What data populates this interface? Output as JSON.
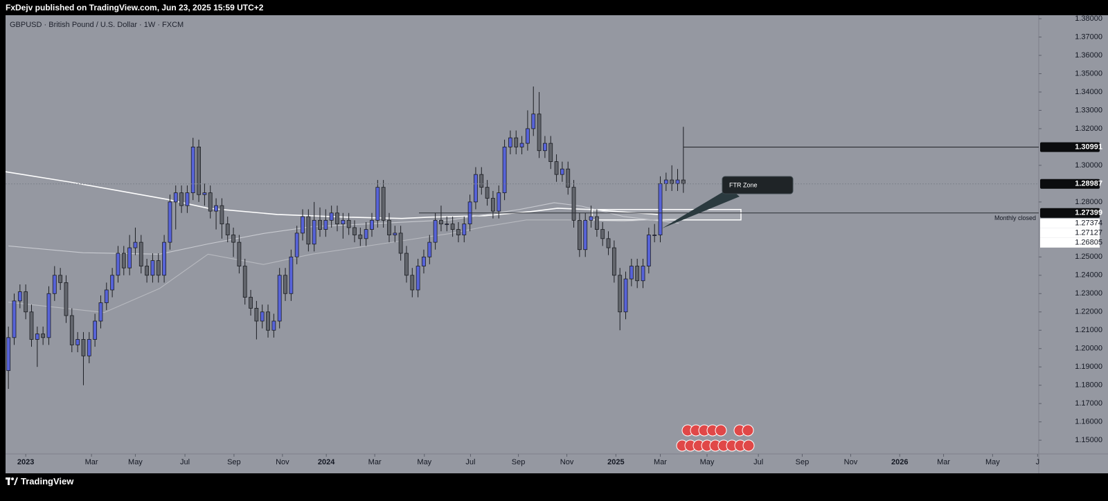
{
  "header": {
    "publisher": "FxDejv published on TradingView.com, Jun 23, 2025 15:59 UTC+2",
    "brand": "TradingView"
  },
  "chart_data": {
    "type": "candlestick",
    "title": "GBPUSD · British Pound / U.S. Dollar · 1W · FXCM",
    "up_color": "#5763d8",
    "down_color": "#62656c",
    "categories": [
      null,
      null,
      null,
      null,
      null,
      null,
      null,
      null,
      null,
      null,
      null,
      null,
      null,
      null,
      null,
      null,
      null,
      null,
      null,
      null,
      null,
      null,
      null,
      null,
      null,
      null,
      null,
      null,
      null,
      null,
      null,
      null,
      null,
      null,
      null,
      null,
      null,
      null,
      null,
      null,
      null,
      null,
      null,
      null,
      null,
      null,
      null,
      null,
      null,
      null,
      null,
      null,
      null,
      null,
      null,
      null,
      null,
      null,
      null,
      null,
      null,
      null,
      null,
      null,
      null,
      null,
      null,
      null,
      null,
      null,
      null,
      null,
      null,
      null,
      null,
      null,
      null,
      null,
      null,
      null,
      null,
      null,
      null,
      null,
      null,
      null,
      null,
      null,
      null,
      null,
      null,
      null,
      null,
      null,
      null,
      null,
      null,
      null,
      null,
      null,
      null,
      null,
      null,
      null,
      null,
      null,
      null,
      null,
      null,
      null,
      null,
      null,
      null,
      null,
      null,
      null,
      null,
      null
    ],
    "open": [
      1.188,
      1.206,
      1.226,
      1.231,
      1.22,
      1.205,
      1.208,
      1.206,
      1.23,
      1.24,
      1.236,
      1.218,
      1.202,
      1.205,
      1.196,
      1.205,
      1.215,
      1.225,
      1.232,
      1.24,
      1.252,
      1.244,
      1.255,
      1.258,
      1.245,
      1.24,
      1.248,
      1.24,
      1.258,
      1.28,
      1.285,
      1.278,
      1.285,
      1.31,
      1.284,
      1.285,
      1.275,
      1.278,
      1.268,
      1.262,
      1.258,
      1.245,
      1.228,
      1.222,
      1.215,
      1.22,
      1.21,
      1.215,
      1.24,
      1.23,
      1.25,
      1.263,
      1.272,
      1.257,
      1.27,
      1.265,
      1.27,
      1.274,
      1.268,
      1.27,
      1.266,
      1.262,
      1.26,
      1.265,
      1.27,
      1.288,
      1.27,
      1.262,
      1.263,
      1.252,
      1.24,
      1.232,
      1.245,
      1.25,
      1.258,
      1.27,
      1.268,
      1.268,
      1.265,
      1.262,
      1.268,
      1.28,
      1.295,
      1.288,
      1.282,
      1.275,
      1.285,
      1.31,
      1.315,
      1.31,
      1.312,
      1.32,
      1.328,
      1.308,
      1.312,
      1.302,
      1.295,
      1.298,
      1.288,
      1.27,
      1.254,
      1.27,
      1.272,
      1.265,
      1.26,
      1.255,
      1.24,
      1.22,
      1.238,
      1.245,
      1.237,
      1.245,
      1.262,
      1.262,
      1.29,
      1.292,
      1.29,
      1.292
    ],
    "high": [
      1.212,
      1.23,
      1.235,
      1.235,
      1.224,
      1.212,
      1.212,
      1.234,
      1.245,
      1.244,
      1.24,
      1.222,
      1.209,
      1.209,
      1.209,
      1.219,
      1.229,
      1.236,
      1.244,
      1.256,
      1.256,
      1.262,
      1.266,
      1.262,
      1.249,
      1.252,
      1.252,
      1.262,
      1.284,
      1.289,
      1.289,
      1.289,
      1.315,
      1.314,
      1.29,
      1.289,
      1.282,
      1.282,
      1.272,
      1.266,
      1.262,
      1.249,
      1.232,
      1.226,
      1.224,
      1.224,
      1.219,
      1.244,
      1.244,
      1.254,
      1.267,
      1.276,
      1.276,
      1.28,
      1.277,
      1.276,
      1.278,
      1.278,
      1.274,
      1.274,
      1.27,
      1.266,
      1.269,
      1.274,
      1.292,
      1.292,
      1.274,
      1.267,
      1.267,
      1.256,
      1.244,
      1.249,
      1.254,
      1.262,
      1.274,
      1.278,
      1.272,
      1.272,
      1.269,
      1.272,
      1.284,
      1.299,
      1.299,
      1.292,
      1.286,
      1.289,
      1.314,
      1.319,
      1.319,
      1.316,
      1.33,
      1.343,
      1.34,
      1.316,
      1.316,
      1.306,
      1.302,
      1.302,
      1.292,
      1.274,
      1.274,
      1.278,
      1.276,
      1.269,
      1.264,
      1.259,
      1.244,
      1.242,
      1.249,
      1.249,
      1.249,
      1.266,
      1.268,
      1.294,
      1.296,
      1.3,
      1.298,
      1.321
    ],
    "low": [
      1.178,
      1.202,
      1.222,
      1.216,
      1.201,
      1.19,
      1.202,
      1.202,
      1.226,
      1.232,
      1.214,
      1.198,
      1.198,
      1.18,
      1.192,
      1.201,
      1.211,
      1.221,
      1.228,
      1.236,
      1.24,
      1.24,
      1.251,
      1.241,
      1.236,
      1.236,
      1.236,
      1.236,
      1.254,
      1.265,
      1.274,
      1.274,
      1.281,
      1.28,
      1.278,
      1.271,
      1.265,
      1.26,
      1.258,
      1.25,
      1.241,
      1.224,
      1.218,
      1.205,
      1.211,
      1.206,
      1.206,
      1.211,
      1.226,
      1.226,
      1.246,
      1.259,
      1.253,
      1.253,
      1.261,
      1.261,
      1.266,
      1.264,
      1.26,
      1.262,
      1.258,
      1.256,
      1.256,
      1.261,
      1.266,
      1.266,
      1.258,
      1.258,
      1.248,
      1.236,
      1.228,
      1.228,
      1.241,
      1.246,
      1.254,
      1.264,
      1.264,
      1.261,
      1.258,
      1.258,
      1.264,
      1.276,
      1.284,
      1.278,
      1.271,
      1.271,
      1.281,
      1.306,
      1.306,
      1.306,
      1.308,
      1.316,
      1.304,
      1.304,
      1.298,
      1.291,
      1.291,
      1.284,
      1.266,
      1.25,
      1.25,
      1.266,
      1.261,
      1.256,
      1.251,
      1.236,
      1.21,
      1.216,
      1.234,
      1.233,
      1.233,
      1.241,
      1.258,
      1.258,
      1.286,
      1.286,
      1.286,
      1.285
    ],
    "close": [
      1.206,
      1.226,
      1.231,
      1.22,
      1.205,
      1.208,
      1.206,
      1.23,
      1.24,
      1.236,
      1.218,
      1.202,
      1.205,
      1.196,
      1.205,
      1.215,
      1.225,
      1.232,
      1.24,
      1.252,
      1.244,
      1.255,
      1.258,
      1.245,
      1.24,
      1.248,
      1.24,
      1.258,
      1.28,
      1.285,
      1.278,
      1.285,
      1.31,
      1.284,
      1.285,
      1.275,
      1.278,
      1.268,
      1.262,
      1.258,
      1.245,
      1.228,
      1.222,
      1.215,
      1.22,
      1.21,
      1.215,
      1.24,
      1.23,
      1.25,
      1.263,
      1.272,
      1.257,
      1.27,
      1.265,
      1.27,
      1.274,
      1.268,
      1.27,
      1.266,
      1.262,
      1.26,
      1.265,
      1.27,
      1.288,
      1.27,
      1.262,
      1.263,
      1.252,
      1.24,
      1.232,
      1.245,
      1.25,
      1.258,
      1.27,
      1.268,
      1.268,
      1.265,
      1.262,
      1.268,
      1.28,
      1.295,
      1.288,
      1.282,
      1.275,
      1.285,
      1.31,
      1.315,
      1.31,
      1.312,
      1.32,
      1.328,
      1.308,
      1.312,
      1.302,
      1.295,
      1.298,
      1.288,
      1.27,
      1.254,
      1.27,
      1.272,
      1.265,
      1.26,
      1.255,
      1.24,
      1.22,
      1.238,
      1.245,
      1.237,
      1.245,
      1.262,
      1.262,
      1.29,
      1.292,
      1.29,
      1.292,
      1.2899
    ],
    "overlays": [
      {
        "color": "#ffffff",
        "x": [
          -0.5,
          10.6,
          27.4,
          34.6,
          46.6,
          58.6,
          68.2,
          73.0,
          82.6,
          90.4,
          95.2,
          100.6,
          112.6
        ],
        "values": [
          1.2965,
          1.2909,
          1.2815,
          1.2766,
          1.2732,
          1.2717,
          1.271,
          1.2717,
          1.2725,
          1.2747,
          1.2766,
          1.2759,
          1.2732
        ]
      },
      {
        "color": "#c9cbd1",
        "x": [
          0,
          12.9,
          26.2,
          34.6,
          44.2,
          52.6,
          64.6,
          76.6,
          88.6,
          94.6,
          99.4,
          106.6,
          116.2
        ],
        "values": [
          1.256,
          1.2523,
          1.2515,
          1.2571,
          1.2628,
          1.2665,
          1.2684,
          1.2702,
          1.2759,
          1.2796,
          1.2777,
          1.2721,
          1.2684
        ]
      },
      {
        "color": "#b8bac0",
        "x": [
          0,
          16.6,
          26.2,
          34.6,
          44.2,
          52.6,
          64.6,
          76.6,
          82.6,
          89.8,
          97.0,
          106.6,
          116.2
        ],
        "values": [
          1.2253,
          1.2197,
          1.2328,
          1.2515,
          1.2459,
          1.2515,
          1.2571,
          1.2628,
          1.2665,
          1.2702,
          1.2702,
          1.2695,
          1.271
        ]
      }
    ],
    "xlim": [
      -0.5,
      178.6
    ],
    "xticks": [
      {
        "value": 3.0,
        "label": "2023"
      },
      {
        "value": 14.4,
        "label": "Mar"
      },
      {
        "value": 22.0,
        "label": "May"
      },
      {
        "value": 30.6,
        "label": "Jul"
      },
      {
        "value": 39.1,
        "label": "Sep"
      },
      {
        "value": 47.5,
        "label": "Nov"
      },
      {
        "value": 55.1,
        "label": "2024"
      },
      {
        "value": 63.5,
        "label": "Mar"
      },
      {
        "value": 72.1,
        "label": "May"
      },
      {
        "value": 80.1,
        "label": "Jul"
      },
      {
        "value": 88.4,
        "label": "Sep"
      },
      {
        "value": 96.8,
        "label": "Nov"
      },
      {
        "value": 105.3,
        "label": "2025"
      },
      {
        "value": 113.0,
        "label": "Mar"
      },
      {
        "value": 121.1,
        "label": "May"
      },
      {
        "value": 130.0,
        "label": "Jul"
      },
      {
        "value": 137.6,
        "label": "Sep"
      },
      {
        "value": 146.0,
        "label": "Nov"
      },
      {
        "value": 154.5,
        "label": "2026"
      },
      {
        "value": 162.1,
        "label": "Mar"
      },
      {
        "value": 170.6,
        "label": "May"
      },
      {
        "value": 178.4,
        "label": "J"
      }
    ],
    "ylim": [
      1.1425,
      1.3819
    ],
    "yticks": [
      {
        "value": 1.38,
        "label": "1.38000"
      },
      {
        "value": 1.37,
        "label": "1.37000"
      },
      {
        "value": 1.36,
        "label": "1.36000"
      },
      {
        "value": 1.35,
        "label": "1.35000"
      },
      {
        "value": 1.34,
        "label": "1.34000"
      },
      {
        "value": 1.33,
        "label": "1.33000"
      },
      {
        "value": 1.32,
        "label": "1.32000"
      },
      {
        "value": 1.3,
        "label": "1.30000"
      },
      {
        "value": 1.28,
        "label": "1.28000"
      },
      {
        "value": 1.25,
        "label": "1.25000"
      },
      {
        "value": 1.24,
        "label": "1.24000"
      },
      {
        "value": 1.23,
        "label": "1.23000"
      },
      {
        "value": 1.22,
        "label": "1.22000"
      },
      {
        "value": 1.21,
        "label": "1.21000"
      },
      {
        "value": 1.2,
        "label": "1.20000"
      },
      {
        "value": 1.19,
        "label": "1.19000"
      },
      {
        "value": 1.18,
        "label": "1.18000"
      },
      {
        "value": 1.17,
        "label": "1.17000"
      },
      {
        "value": 1.16,
        "label": "1.16000"
      },
      {
        "value": 1.15,
        "label": "1.15000"
      }
    ],
    "price_labels": [
      1.30991,
      1.28987,
      1.27399
    ],
    "indicator_labels": [
      1.27374,
      1.27127,
      1.26805
    ],
    "zone": [
      1.2702,
      1.2759
    ],
    "annotations": {
      "zone_label": "FTR Zone",
      "monthly": "Monthly closed"
    }
  }
}
